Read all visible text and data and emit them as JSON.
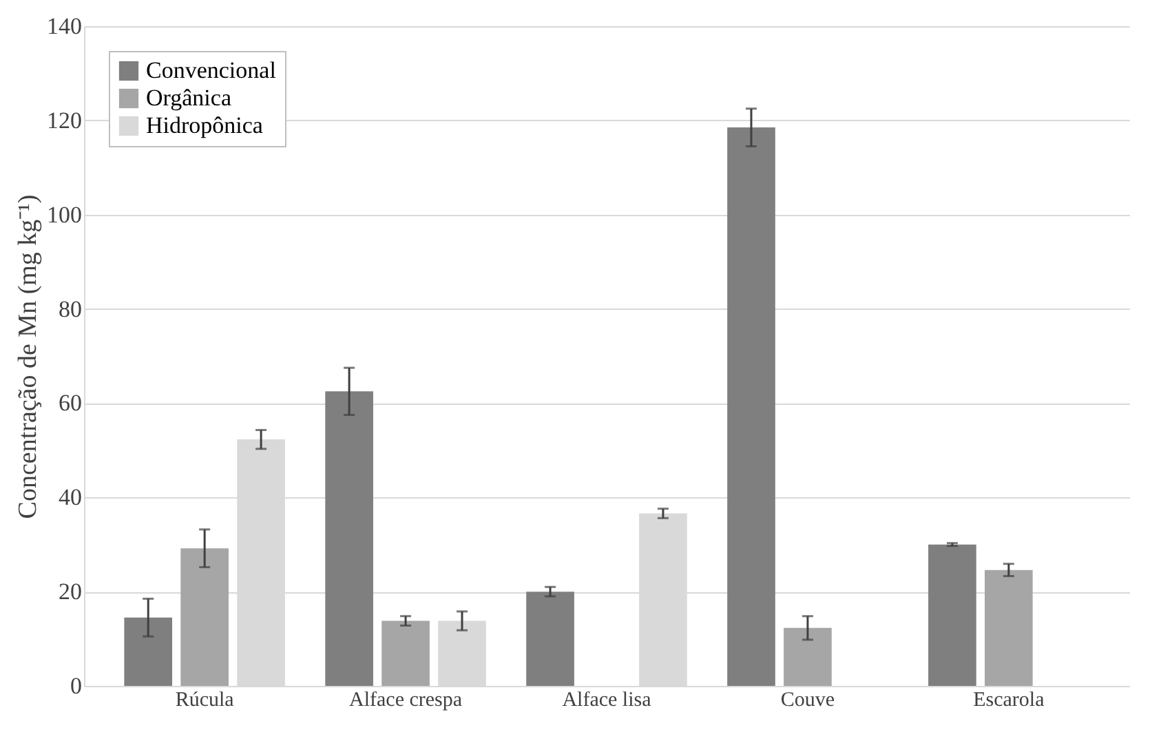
{
  "chart_data": {
    "type": "bar",
    "ylabel": "Concentração de Mn (mg kg⁻¹)",
    "categories": [
      "Rúcula",
      "Alface crespa",
      "Alface lisa",
      "Couve",
      "Escarola"
    ],
    "series": [
      {
        "name": "Convencional",
        "color": "#7f7f7f",
        "values": [
          14.5,
          62.5,
          20,
          118.5,
          30
        ],
        "errors": [
          4,
          5,
          1,
          4,
          0.3
        ]
      },
      {
        "name": "Orgânica",
        "color": "#a6a6a6",
        "values": [
          29.2,
          13.8,
          0,
          12.3,
          24.6
        ],
        "errors": [
          4,
          1,
          null,
          2.5,
          1.3
        ]
      },
      {
        "name": "Hidropônica",
        "color": "#d9d9d9",
        "values": [
          52.3,
          13.8,
          36.6,
          0,
          0
        ],
        "errors": [
          2,
          2,
          1,
          null,
          null
        ]
      }
    ],
    "ylim": [
      0,
      140
    ],
    "yticks": [
      0,
      20,
      40,
      60,
      80,
      100,
      120,
      140
    ],
    "grid": "y",
    "legend": "top left"
  }
}
